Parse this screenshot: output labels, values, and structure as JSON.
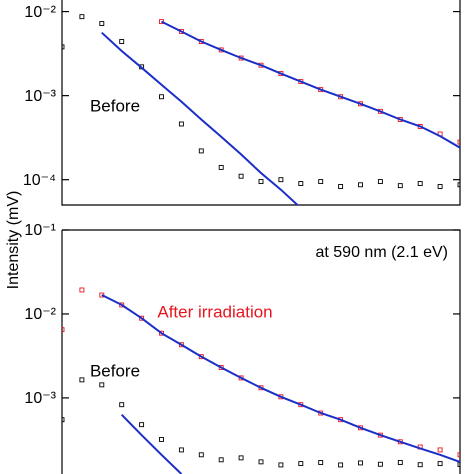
{
  "chart_data": [
    {
      "type": "scatter",
      "ylabel": "Intensity (mV)",
      "log_y": true,
      "xlim": [
        0,
        100
      ],
      "ylim": [
        5e-05,
        0.013
      ],
      "yticks": [
        {
          "value": 0.01,
          "label": "10⁻²"
        },
        {
          "value": 0.001,
          "label": "10⁻³"
        },
        {
          "value": 0.0001,
          "label": "10⁻⁴"
        }
      ],
      "x": [
        0,
        5,
        10,
        15,
        20,
        25,
        30,
        35,
        40,
        45,
        50,
        55,
        60,
        65,
        70,
        75,
        80,
        85,
        90,
        95,
        100
      ],
      "series": [
        {
          "color": "#000000",
          "mode": "markers",
          "values": [
            0.0038,
            0.0087,
            0.0072,
            0.0044,
            0.0022,
            0.00097,
            0.00046,
            0.00022,
            0.00014,
            0.00011,
            9.5e-05,
            0.0001,
            9e-05,
            9.5e-05,
            8.3e-05,
            8.7e-05,
            9.5e-05,
            8.5e-05,
            9e-05,
            8.3e-05,
            8.7e-05
          ]
        },
        {
          "color": "#e8141e",
          "mode": "markers",
          "values": [
            null,
            null,
            null,
            null,
            null,
            0.0076,
            0.0058,
            0.0044,
            0.0035,
            0.0028,
            0.0023,
            0.00183,
            0.00147,
            0.00118,
            0.00097,
            0.0008,
            0.00065,
            0.00052,
            0.00043,
            0.00035,
            0.00028
          ]
        },
        {
          "color": "#1c2ec8",
          "mode": "line",
          "values": [
            null,
            null,
            0.0056,
            0.0034,
            0.00215,
            0.00135,
            0.00085,
            0.00052,
            0.000325,
            0.0002,
            0.00012,
            7.6e-05,
            4.6e-05,
            null,
            null,
            null,
            null,
            null,
            null,
            null,
            null
          ]
        },
        {
          "color": "#1c2ec8",
          "mode": "line",
          "values": [
            null,
            null,
            null,
            null,
            null,
            0.0076,
            0.0058,
            0.0044,
            0.0035,
            0.0028,
            0.0023,
            0.00183,
            0.00147,
            0.00118,
            0.00097,
            0.0008,
            0.00065,
            0.00052,
            0.00043,
            0.00033,
            0.00024
          ]
        }
      ],
      "annotations": [
        {
          "text": "Before",
          "color": "#000000"
        }
      ]
    },
    {
      "type": "scatter",
      "log_y": true,
      "xlim": [
        0,
        100
      ],
      "ylim": [
        0.000124,
        0.1
      ],
      "yticks": [
        {
          "value": 0.1,
          "label": "10⁻¹"
        },
        {
          "value": 0.01,
          "label": "10⁻²"
        },
        {
          "value": 0.001,
          "label": "10⁻³"
        }
      ],
      "x": [
        0,
        5,
        10,
        15,
        20,
        25,
        30,
        35,
        40,
        45,
        50,
        55,
        60,
        65,
        70,
        75,
        80,
        85,
        90,
        95,
        100
      ],
      "series": [
        {
          "color": "#000000",
          "mode": "markers",
          "values": [
            0.00055,
            0.00164,
            0.00143,
            0.00083,
            0.00048,
            0.00032,
            0.00024,
            0.00021,
            0.000183,
            0.000193,
            0.000173,
            0.000159,
            0.000165,
            0.00017,
            0.000159,
            0.000168,
            0.000162,
            0.00017,
            0.00016,
            0.000165,
            0.000161
          ]
        },
        {
          "color": "#e8141e",
          "mode": "markers",
          "values": [
            0.0065,
            0.0193,
            0.0168,
            0.0128,
            0.0089,
            0.0059,
            0.0043,
            0.0031,
            0.0023,
            0.00173,
            0.00132,
            0.00103,
            0.00083,
            0.00066,
            0.00055,
            0.00044,
            0.00036,
            0.0003,
            0.00026,
            0.00024,
            0.00021
          ]
        },
        {
          "color": "#1c2ec8",
          "mode": "line",
          "values": [
            null,
            null,
            null,
            0.00063,
            0.00036,
            0.00021,
            0.000124,
            null,
            null,
            null,
            null,
            null,
            null,
            null,
            null,
            null,
            null,
            null,
            null,
            null,
            null
          ]
        },
        {
          "color": "#1c2ec8",
          "mode": "line",
          "values": [
            null,
            null,
            0.0168,
            0.0128,
            0.0089,
            0.0059,
            0.0043,
            0.0031,
            0.0023,
            0.00173,
            0.00132,
            0.00103,
            0.00083,
            0.00066,
            0.00055,
            0.00044,
            0.00036,
            0.0003,
            0.00025,
            0.00021,
            0.000173
          ]
        }
      ],
      "annotations": [
        {
          "text": "at 590 nm (2.1 eV)",
          "color": "#000000"
        },
        {
          "text": "After irradiation",
          "color": "#e8141e"
        },
        {
          "text": "Before",
          "color": "#000000"
        }
      ]
    }
  ]
}
